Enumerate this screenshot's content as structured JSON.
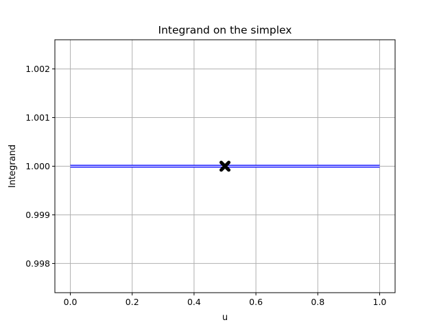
{
  "chart_data": {
    "type": "line",
    "title": "Integrand on the simplex",
    "xlabel": "u",
    "ylabel": "Integrand",
    "xlim": [
      -0.05,
      1.05
    ],
    "ylim": [
      0.9974,
      1.0026
    ],
    "x_ticks": [
      0.0,
      0.2,
      0.4,
      0.6,
      0.8,
      1.0
    ],
    "x_tick_labels": [
      "0.0",
      "0.2",
      "0.4",
      "0.6",
      "0.8",
      "1.0"
    ],
    "y_ticks": [
      0.998,
      0.999,
      1.0,
      1.001,
      1.002
    ],
    "y_tick_labels": [
      "0.998",
      "0.999",
      "1.000",
      "1.001",
      "1.002"
    ],
    "grid": true,
    "series": [
      {
        "kind": "line",
        "color": "#0000ff",
        "x": [
          0.0,
          0.1,
          0.2,
          0.3,
          0.4,
          0.5,
          0.6,
          0.7,
          0.8,
          0.9,
          1.0
        ],
        "y": [
          1.0,
          1.0,
          1.0,
          1.0,
          1.0,
          1.0,
          1.0,
          1.0,
          1.0,
          1.0,
          1.0
        ]
      },
      {
        "kind": "marker",
        "marker": "X",
        "color": "#000000",
        "x": [
          0.5
        ],
        "y": [
          1.0
        ]
      }
    ]
  }
}
